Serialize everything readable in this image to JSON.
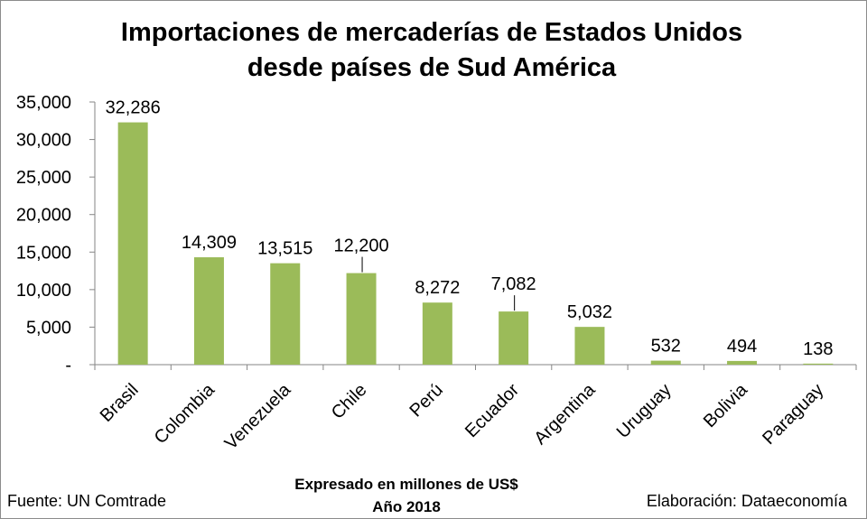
{
  "chart_data": {
    "type": "bar",
    "title": [
      "Importaciones de mercaderías de Estados Unidos",
      "desde países de Sud América"
    ],
    "categories": [
      "Brasil",
      "Colombia",
      "Venezuela",
      "Chile",
      "Perú",
      "Ecuador",
      "Argentina",
      "Uruguay",
      "Bolivia",
      "Paraguay"
    ],
    "values": [
      32286,
      14309,
      13515,
      12200,
      8272,
      7082,
      5032,
      532,
      494,
      138
    ],
    "data_labels": [
      "32,286",
      "14,309",
      "13,515",
      "12,200",
      "8,272",
      "7,082",
      "5,032",
      "532",
      "494",
      "138"
    ],
    "data_label_leader_lines": [
      false,
      false,
      false,
      true,
      false,
      true,
      false,
      false,
      false,
      false
    ],
    "ylim": [
      0,
      35000
    ],
    "y_ticks": [
      0,
      5000,
      10000,
      15000,
      20000,
      25000,
      30000,
      35000
    ],
    "y_tick_labels": [
      "-",
      "5,000",
      "10,000",
      "15,000",
      "20,000",
      "25,000",
      "30,000",
      "35,000"
    ],
    "xlabel": "Expresado en millones de US$",
    "grid": false,
    "legend": false,
    "bar_color": "#9BBB59",
    "axis_color": "#868686"
  },
  "footer": {
    "period": "Año 2018",
    "source": "Fuente: UN Comtrade",
    "credit": "Elaboración: Dataeconomía"
  }
}
